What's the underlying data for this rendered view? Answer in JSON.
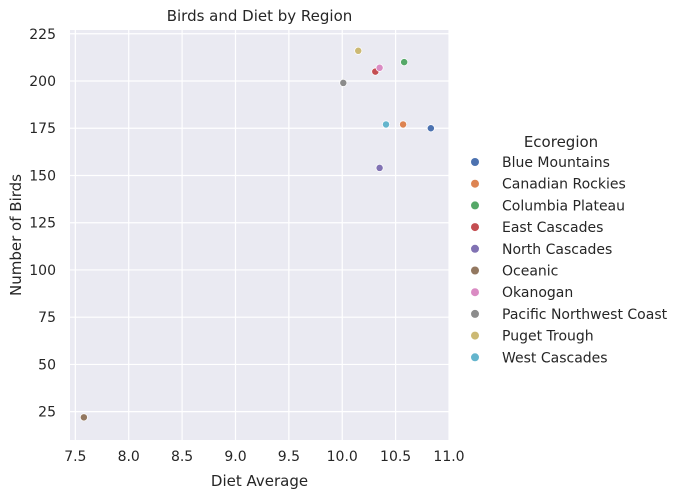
{
  "chart_data": {
    "type": "scatter",
    "title": "Birds and Diet by Region",
    "xlabel": "Diet Average",
    "ylabel": "Number of Birds",
    "xlim": [
      7.45,
      11.0
    ],
    "ylim": [
      10,
      227
    ],
    "xticks": [
      7.5,
      8.0,
      8.5,
      9.0,
      9.5,
      10.0,
      10.5,
      11.0
    ],
    "yticks": [
      25,
      50,
      75,
      100,
      125,
      150,
      175,
      200,
      225
    ],
    "grid": true,
    "background": "#eaeaf2",
    "legend_placement": "right",
    "legend_title": "Ecoregion",
    "series": [
      {
        "name": "Blue Mountains",
        "color": "#4c72b0",
        "points": [
          {
            "x": 10.83,
            "y": 175
          }
        ]
      },
      {
        "name": "Canadian Rockies",
        "color": "#dd8452",
        "points": [
          {
            "x": 10.57,
            "y": 177
          }
        ]
      },
      {
        "name": "Columbia Plateau",
        "color": "#55a868",
        "points": [
          {
            "x": 10.58,
            "y": 210
          }
        ]
      },
      {
        "name": "East Cascades",
        "color": "#c44e52",
        "points": [
          {
            "x": 10.31,
            "y": 205
          }
        ]
      },
      {
        "name": "North Cascades",
        "color": "#8172b3",
        "points": [
          {
            "x": 10.35,
            "y": 154
          }
        ]
      },
      {
        "name": "Oceanic",
        "color": "#937860",
        "points": [
          {
            "x": 7.58,
            "y": 22
          }
        ]
      },
      {
        "name": "Okanogan",
        "color": "#da8bc3",
        "points": [
          {
            "x": 10.35,
            "y": 207
          }
        ]
      },
      {
        "name": "Pacific Northwest Coast",
        "color": "#8c8c8c",
        "points": [
          {
            "x": 10.01,
            "y": 199
          }
        ]
      },
      {
        "name": "Puget Trough",
        "color": "#ccb974",
        "points": [
          {
            "x": 10.15,
            "y": 216
          }
        ]
      },
      {
        "name": "West Cascades",
        "color": "#64b5cd",
        "points": [
          {
            "x": 10.41,
            "y": 177
          }
        ]
      }
    ]
  }
}
